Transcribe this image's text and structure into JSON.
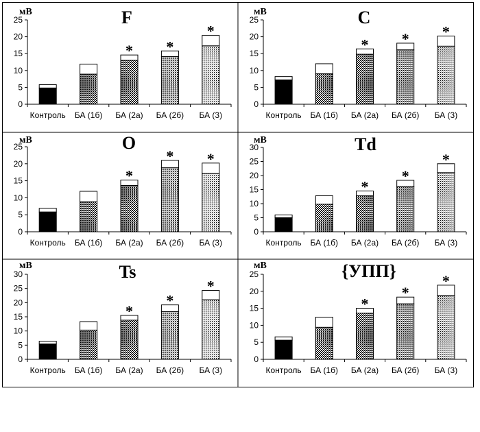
{
  "chart_data": [
    {
      "type": "bar",
      "title": "F",
      "ylabel": "мВ",
      "ylim": [
        0,
        25
      ],
      "yticks": [
        0,
        5,
        10,
        15,
        20,
        25
      ],
      "categories": [
        "Контроль",
        "БА (1б)",
        "БА (2а)",
        "БА (2б)",
        "БА (3)"
      ],
      "values": [
        4.8,
        8.9,
        13.0,
        14.1,
        17.3
      ],
      "error_upper": [
        5.8,
        11.9,
        14.6,
        15.8,
        20.4
      ],
      "significant": [
        false,
        false,
        true,
        true,
        true
      ],
      "significance_marker": "*",
      "fill_patterns": [
        "solid-black",
        "dense-dots",
        "dense-dots",
        "medium-dots",
        "light-dots"
      ],
      "grid": false
    },
    {
      "type": "bar",
      "title": "C",
      "ylabel": "мВ",
      "ylim": [
        0,
        25
      ],
      "yticks": [
        0,
        5,
        10,
        15,
        20,
        25
      ],
      "categories": [
        "Контроль",
        "БА (1б)",
        "БА (2а)",
        "БА (2б)",
        "БА (3)"
      ],
      "values": [
        7.2,
        9.0,
        14.8,
        16.1,
        17.2
      ],
      "error_upper": [
        8.2,
        12.0,
        16.4,
        18.1,
        20.2
      ],
      "significant": [
        false,
        false,
        true,
        true,
        true
      ],
      "significance_marker": "*",
      "fill_patterns": [
        "solid-black",
        "dense-dots",
        "dense-dots",
        "medium-dots",
        "light-dots"
      ],
      "grid": false
    },
    {
      "type": "bar",
      "title": "O",
      "ylabel": "мВ",
      "ylim": [
        0,
        25
      ],
      "yticks": [
        0,
        5,
        10,
        15,
        20,
        25
      ],
      "categories": [
        "Контроль",
        "БА (1б)",
        "БА (2а)",
        "БА (2б)",
        "БА (3)"
      ],
      "values": [
        5.8,
        8.8,
        13.6,
        18.8,
        17.2
      ],
      "error_upper": [
        6.9,
        11.9,
        15.2,
        21.0,
        20.2
      ],
      "significant": [
        false,
        false,
        true,
        true,
        true
      ],
      "significance_marker": "*",
      "fill_patterns": [
        "solid-black",
        "dense-dots",
        "dense-dots",
        "medium-dots",
        "light-dots"
      ],
      "grid": false
    },
    {
      "type": "bar",
      "title": "Td",
      "ylabel": "мВ",
      "ylim": [
        0,
        30
      ],
      "yticks": [
        0,
        5,
        10,
        15,
        20,
        25,
        30
      ],
      "categories": [
        "Контроль",
        "БА (1б)",
        "БА (2а)",
        "БА (2б)",
        "БА (3)"
      ],
      "values": [
        5.0,
        9.8,
        12.8,
        16.2,
        21.0
      ],
      "error_upper": [
        6.0,
        12.8,
        14.5,
        18.3,
        24.2
      ],
      "significant": [
        false,
        false,
        true,
        true,
        true
      ],
      "significance_marker": "*",
      "fill_patterns": [
        "solid-black",
        "dense-dots",
        "dense-dots",
        "medium-dots",
        "light-dots"
      ],
      "grid": false
    },
    {
      "type": "bar",
      "title": "Ts",
      "ylabel": "мВ",
      "ylim": [
        0,
        30
      ],
      "yticks": [
        0,
        5,
        10,
        15,
        20,
        25,
        30
      ],
      "categories": [
        "Контроль",
        "БА (1б)",
        "БА (2а)",
        "БА (2б)",
        "БА (3)"
      ],
      "values": [
        5.4,
        10.3,
        13.8,
        16.8,
        21.0
      ],
      "error_upper": [
        6.4,
        13.3,
        15.5,
        19.2,
        24.3
      ],
      "significant": [
        false,
        false,
        true,
        true,
        true
      ],
      "significance_marker": "*",
      "fill_patterns": [
        "solid-black",
        "dense-dots",
        "dense-dots",
        "medium-dots",
        "light-dots"
      ],
      "grid": false
    },
    {
      "type": "bar",
      "title": "{УПП}",
      "ylabel": "мВ",
      "ylim": [
        0,
        25
      ],
      "yticks": [
        0,
        5,
        10,
        15,
        20,
        25
      ],
      "categories": [
        "Контроль",
        "БА (1б)",
        "БА (2а)",
        "БА (2б)",
        "БА (3)"
      ],
      "values": [
        5.6,
        9.4,
        13.6,
        16.3,
        18.8
      ],
      "error_upper": [
        6.6,
        12.4,
        15.0,
        18.3,
        21.8
      ],
      "significant": [
        false,
        false,
        true,
        true,
        true
      ],
      "significance_marker": "*",
      "fill_patterns": [
        "solid-black",
        "dense-dots",
        "dense-dots",
        "medium-dots",
        "light-dots"
      ],
      "grid": false
    }
  ]
}
